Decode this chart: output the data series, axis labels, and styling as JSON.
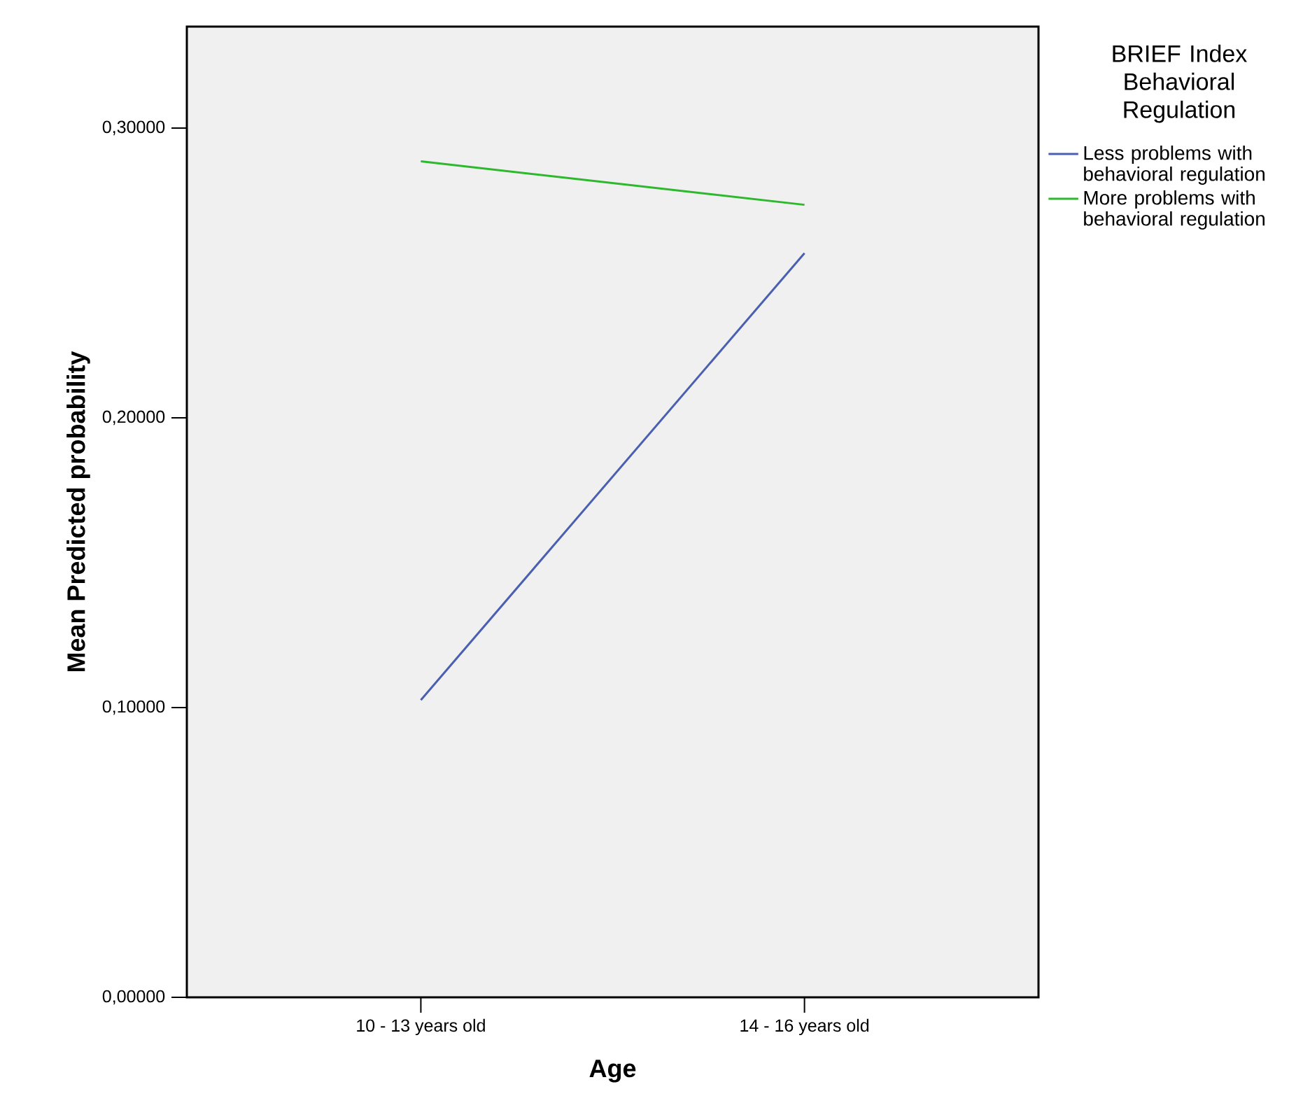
{
  "chart_data": {
    "type": "line",
    "xlabel": "Age",
    "ylabel": "Mean Predicted probability",
    "legend_title": "BRIEF Index Behavioral Regulation",
    "categories": [
      "10 - 13 years old",
      "14 - 16 years old"
    ],
    "series": [
      {
        "name": "Less problems with behavioral regulation",
        "color": "#4a5fb0",
        "values": [
          0.1026,
          0.2568
        ]
      },
      {
        "name": "More problems with behavioral regulation",
        "color": "#2db82d",
        "values": [
          0.2885,
          0.2735
        ]
      }
    ],
    "ylim": [
      0,
      0.335
    ],
    "yticks": [
      {
        "value": 0,
        "label": "0,00000"
      },
      {
        "value": 0.1,
        "label": "0,10000"
      },
      {
        "value": 0.2,
        "label": "0,20000"
      },
      {
        "value": 0.3,
        "label": "0,30000"
      }
    ],
    "grid": false,
    "legend": "right",
    "marker": "none",
    "line_style": "solid"
  }
}
